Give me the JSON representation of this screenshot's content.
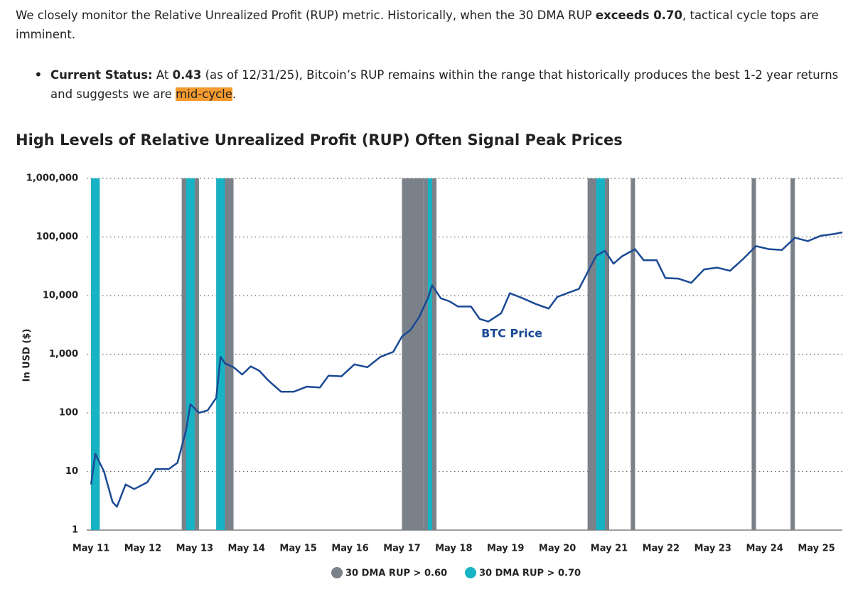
{
  "text": {
    "intro": [
      "We closely monitor the Relative Unrealized Profit (RUP) metric. Historically, when the 30 DMA RUP ",
      "exceeds 0.70",
      ", tactical cycle tops are imminent."
    ],
    "bullet": [
      "Current Status:",
      " At ",
      "0.43",
      " (as of 12/31/25), Bitcoin’s RUP remains within the range that historically produces the best 1-2 year returns and suggests we are ",
      "mid-cycle",
      "."
    ]
  },
  "chart_data": {
    "type": "line",
    "title": "High Levels of Relative Unrealized Profit (RUP) Often Signal Peak Prices",
    "ylabel": "In USD ($)",
    "log_y": true,
    "grid": true,
    "legend": "bottom",
    "xlim": [
      "2011-04",
      "2025-11"
    ],
    "xticks": [
      {
        "value": "2011-05",
        "label": "May 11"
      },
      {
        "value": "2012-05",
        "label": "May 12"
      },
      {
        "value": "2013-05",
        "label": "May 13"
      },
      {
        "value": "2014-05",
        "label": "May 14"
      },
      {
        "value": "2015-05",
        "label": "May 15"
      },
      {
        "value": "2016-05",
        "label": "May 16"
      },
      {
        "value": "2017-05",
        "label": "May 17"
      },
      {
        "value": "2018-05",
        "label": "May 18"
      },
      {
        "value": "2019-05",
        "label": "May 19"
      },
      {
        "value": "2020-05",
        "label": "May 20"
      },
      {
        "value": "2021-05",
        "label": "May 21"
      },
      {
        "value": "2022-05",
        "label": "May 22"
      },
      {
        "value": "2023-05",
        "label": "May 23"
      },
      {
        "value": "2024-05",
        "label": "May 24"
      },
      {
        "value": "2025-05",
        "label": "May 25"
      }
    ],
    "ylim": [
      1,
      1000000
    ],
    "yticks": [
      1,
      10,
      100,
      {
        "value": 1000,
        "label": "1,000"
      },
      {
        "value": 10000,
        "label": "10,000"
      },
      {
        "value": 100000,
        "label": "100,000"
      },
      {
        "value": 1000000,
        "label": "1,000,000"
      }
    ],
    "bands": [
      {
        "name": "30 DMA RUP > 0.60",
        "color": "#7b8189",
        "ranges": [
          [
            "2011-05",
            "2011-07"
          ],
          [
            "2013-02",
            "2013-06"
          ],
          [
            "2013-10",
            "2014-02"
          ],
          [
            "2017-05",
            "2017-10"
          ],
          [
            "2017-10",
            "2018-01"
          ],
          [
            "2020-12",
            "2021-05"
          ],
          [
            "2021-10",
            "2021-11"
          ],
          [
            "2024-02",
            "2024-03"
          ],
          [
            "2024-11",
            "2024-12"
          ]
        ]
      },
      {
        "name": "30 DMA RUP > 0.70",
        "color": "#17b3c4",
        "ranges": [
          [
            "2011-05",
            "2011-07"
          ],
          [
            "2013-03",
            "2013-05"
          ],
          [
            "2013-10",
            "2013-12"
          ],
          [
            "2017-11",
            "2017-12"
          ],
          [
            "2021-02",
            "2021-04"
          ]
        ]
      }
    ],
    "series": [
      {
        "name": "BTC Price",
        "color": "#1a4a94",
        "x": [
          "2011-05",
          "2011-06",
          "2011-08",
          "2011-10",
          "2011-11",
          "2012-01",
          "2012-03",
          "2012-06",
          "2012-08",
          "2012-11",
          "2013-01",
          "2013-03",
          "2013-04",
          "2013-06",
          "2013-08",
          "2013-10",
          "2013-11",
          "2013-12",
          "2014-02",
          "2014-04",
          "2014-06",
          "2014-08",
          "2014-10",
          "2015-01",
          "2015-04",
          "2015-07",
          "2015-10",
          "2015-12",
          "2016-03",
          "2016-06",
          "2016-09",
          "2016-12",
          "2017-03",
          "2017-05",
          "2017-07",
          "2017-09",
          "2017-11",
          "2017-12",
          "2018-02",
          "2018-04",
          "2018-06",
          "2018-09",
          "2018-11",
          "2019-01",
          "2019-04",
          "2019-06",
          "2019-09",
          "2019-12",
          "2020-03",
          "2020-05",
          "2020-08",
          "2020-10",
          "2020-12",
          "2021-02",
          "2021-04",
          "2021-06",
          "2021-08",
          "2021-11",
          "2022-01",
          "2022-04",
          "2022-06",
          "2022-09",
          "2022-12",
          "2023-03",
          "2023-06",
          "2023-09",
          "2023-12",
          "2024-03",
          "2024-06",
          "2024-09",
          "2024-12",
          "2025-03",
          "2025-06",
          "2025-09",
          "2025-11"
        ],
        "values": [
          6,
          20,
          10,
          3,
          2.5,
          6,
          5,
          6.5,
          11,
          11,
          14,
          50,
          140,
          100,
          110,
          180,
          900,
          700,
          600,
          450,
          620,
          520,
          360,
          230,
          230,
          280,
          270,
          430,
          420,
          670,
          600,
          900,
          1100,
          2000,
          2600,
          4300,
          9000,
          15000,
          9000,
          8000,
          6500,
          6500,
          4000,
          3600,
          5000,
          11000,
          9000,
          7200,
          6000,
          9500,
          11500,
          13000,
          25000,
          48000,
          58000,
          35000,
          47000,
          62000,
          40000,
          40000,
          20000,
          19500,
          16500,
          28000,
          30000,
          26500,
          42000,
          70000,
          62000,
          60000,
          97000,
          85000,
          105000,
          112000,
          120000
        ]
      }
    ]
  }
}
